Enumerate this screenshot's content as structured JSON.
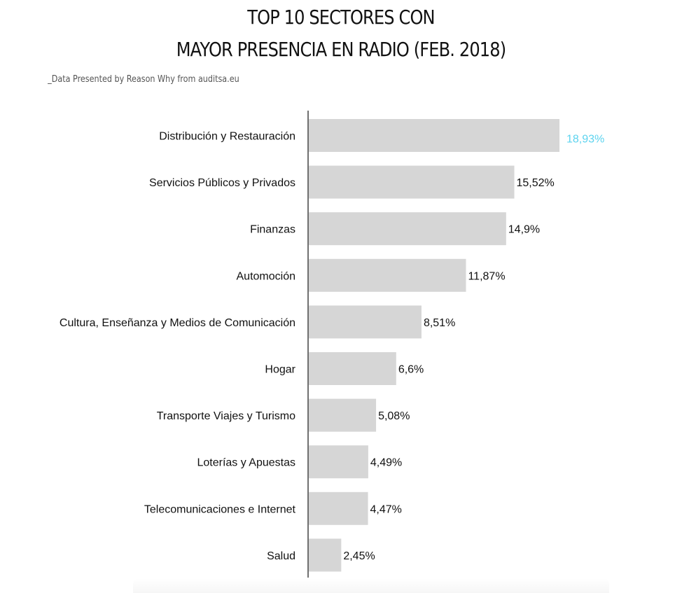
{
  "chart_data": {
    "type": "bar",
    "orientation": "horizontal",
    "title_lines": [
      "TOP 10 SECTORES CON",
      "MAYOR PRESENCIA EN RADIO (FEB. 2018)"
    ],
    "subtitle": "_Data Presented by Reason Why from auditsa.eu",
    "categories": [
      "Distribución y Restauración",
      "Servicios Públicos y Privados",
      "Finanzas",
      "Automoción",
      "Cultura, Enseñanza y Medios de Comunicación",
      "Hogar",
      "Transporte Viajes y Turismo",
      "Loterías y Apuestas",
      "Telecomunicaciones e Internet",
      "Salud"
    ],
    "values": [
      18.93,
      15.52,
      14.9,
      11.87,
      8.51,
      6.6,
      5.08,
      4.49,
      4.47,
      2.45
    ],
    "value_labels": [
      "18,93%",
      "15,52%",
      "14,9%",
      "11,87%",
      "8,51%",
      "6,6%",
      "5,08%",
      "4,49%",
      "4,47%",
      "2,45%"
    ],
    "highlight_index": 0,
    "xlim": [
      0,
      20
    ],
    "xlabel": "",
    "ylabel": "",
    "grid": false,
    "bar_color": "#d6d6d6",
    "highlight_label_color": "#5cd3ef",
    "axis_color": "#111111"
  }
}
